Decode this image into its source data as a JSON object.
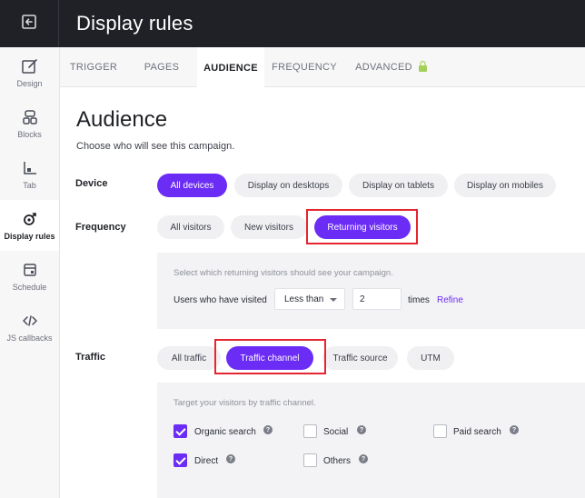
{
  "app": {
    "title": "Display rules",
    "exit_icon": "exit-icon"
  },
  "sidebar": {
    "items": [
      {
        "label": "Design",
        "icon": "design-icon"
      },
      {
        "label": "Blocks",
        "icon": "blocks-icon"
      },
      {
        "label": "Tab",
        "icon": "tab-icon"
      },
      {
        "label": "Display rules",
        "icon": "display-rules-icon",
        "active": true
      },
      {
        "label": "Schedule",
        "icon": "schedule-icon"
      },
      {
        "label": "JS callbacks",
        "icon": "code-icon"
      }
    ]
  },
  "tabs": [
    "TRIGGER",
    "PAGES",
    "AUDIENCE",
    "FREQUENCY",
    "ADVANCED"
  ],
  "active_tab": "AUDIENCE",
  "main": {
    "title": "Audience",
    "subtitle": "Choose who will see this campaign."
  },
  "device": {
    "label": "Device",
    "options": [
      "All devices",
      "Display on desktops",
      "Display on tablets",
      "Display on mobiles"
    ],
    "selected": "All devices"
  },
  "frequency": {
    "label": "Frequency",
    "options": [
      "All visitors",
      "New visitors",
      "Returning visitors"
    ],
    "selected": "Returning visitors",
    "panel": {
      "description": "Select which returning visitors should see your campaign.",
      "field_label": "Users who have visited",
      "comparator": "Less than",
      "count": "2",
      "unit": "times",
      "refine_label": "Refine"
    }
  },
  "traffic": {
    "label": "Traffic",
    "options": [
      "All traffic",
      "Traffic channel",
      "Traffic source",
      "UTM"
    ],
    "selected": "Traffic channel",
    "panel": {
      "description": "Target your visitors by traffic channel.",
      "channels": [
        {
          "label": "Organic search",
          "checked": true
        },
        {
          "label": "Social",
          "checked": false
        },
        {
          "label": "Paid search",
          "checked": false
        },
        {
          "label": "Direct",
          "checked": true
        },
        {
          "label": "Others",
          "checked": false
        }
      ]
    }
  },
  "colors": {
    "accent": "#6b2cf5",
    "highlight": "#e5252f",
    "topbar": "#1f2126"
  }
}
